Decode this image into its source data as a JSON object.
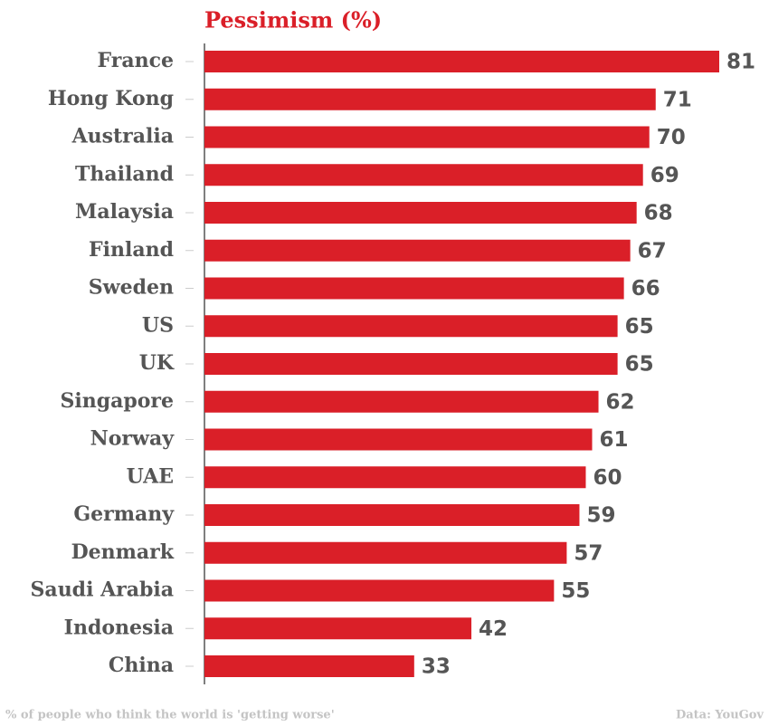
{
  "chart_data": {
    "type": "bar",
    "orientation": "horizontal",
    "title": "Pessimism (%)",
    "categories": [
      "France",
      "Hong Kong",
      "Australia",
      "Thailand",
      "Malaysia",
      "Finland",
      "Sweden",
      "US",
      "UK",
      "Singapore",
      "Norway",
      "UAE",
      "Germany",
      "Denmark",
      "Saudi Arabia",
      "Indonesia",
      "China"
    ],
    "values": [
      81,
      71,
      70,
      69,
      68,
      67,
      66,
      65,
      65,
      62,
      61,
      60,
      59,
      57,
      55,
      42,
      33
    ],
    "color": "#da1f28",
    "caption": "% of people who think the world is 'getting worse'",
    "source": "Data: YouGov"
  }
}
